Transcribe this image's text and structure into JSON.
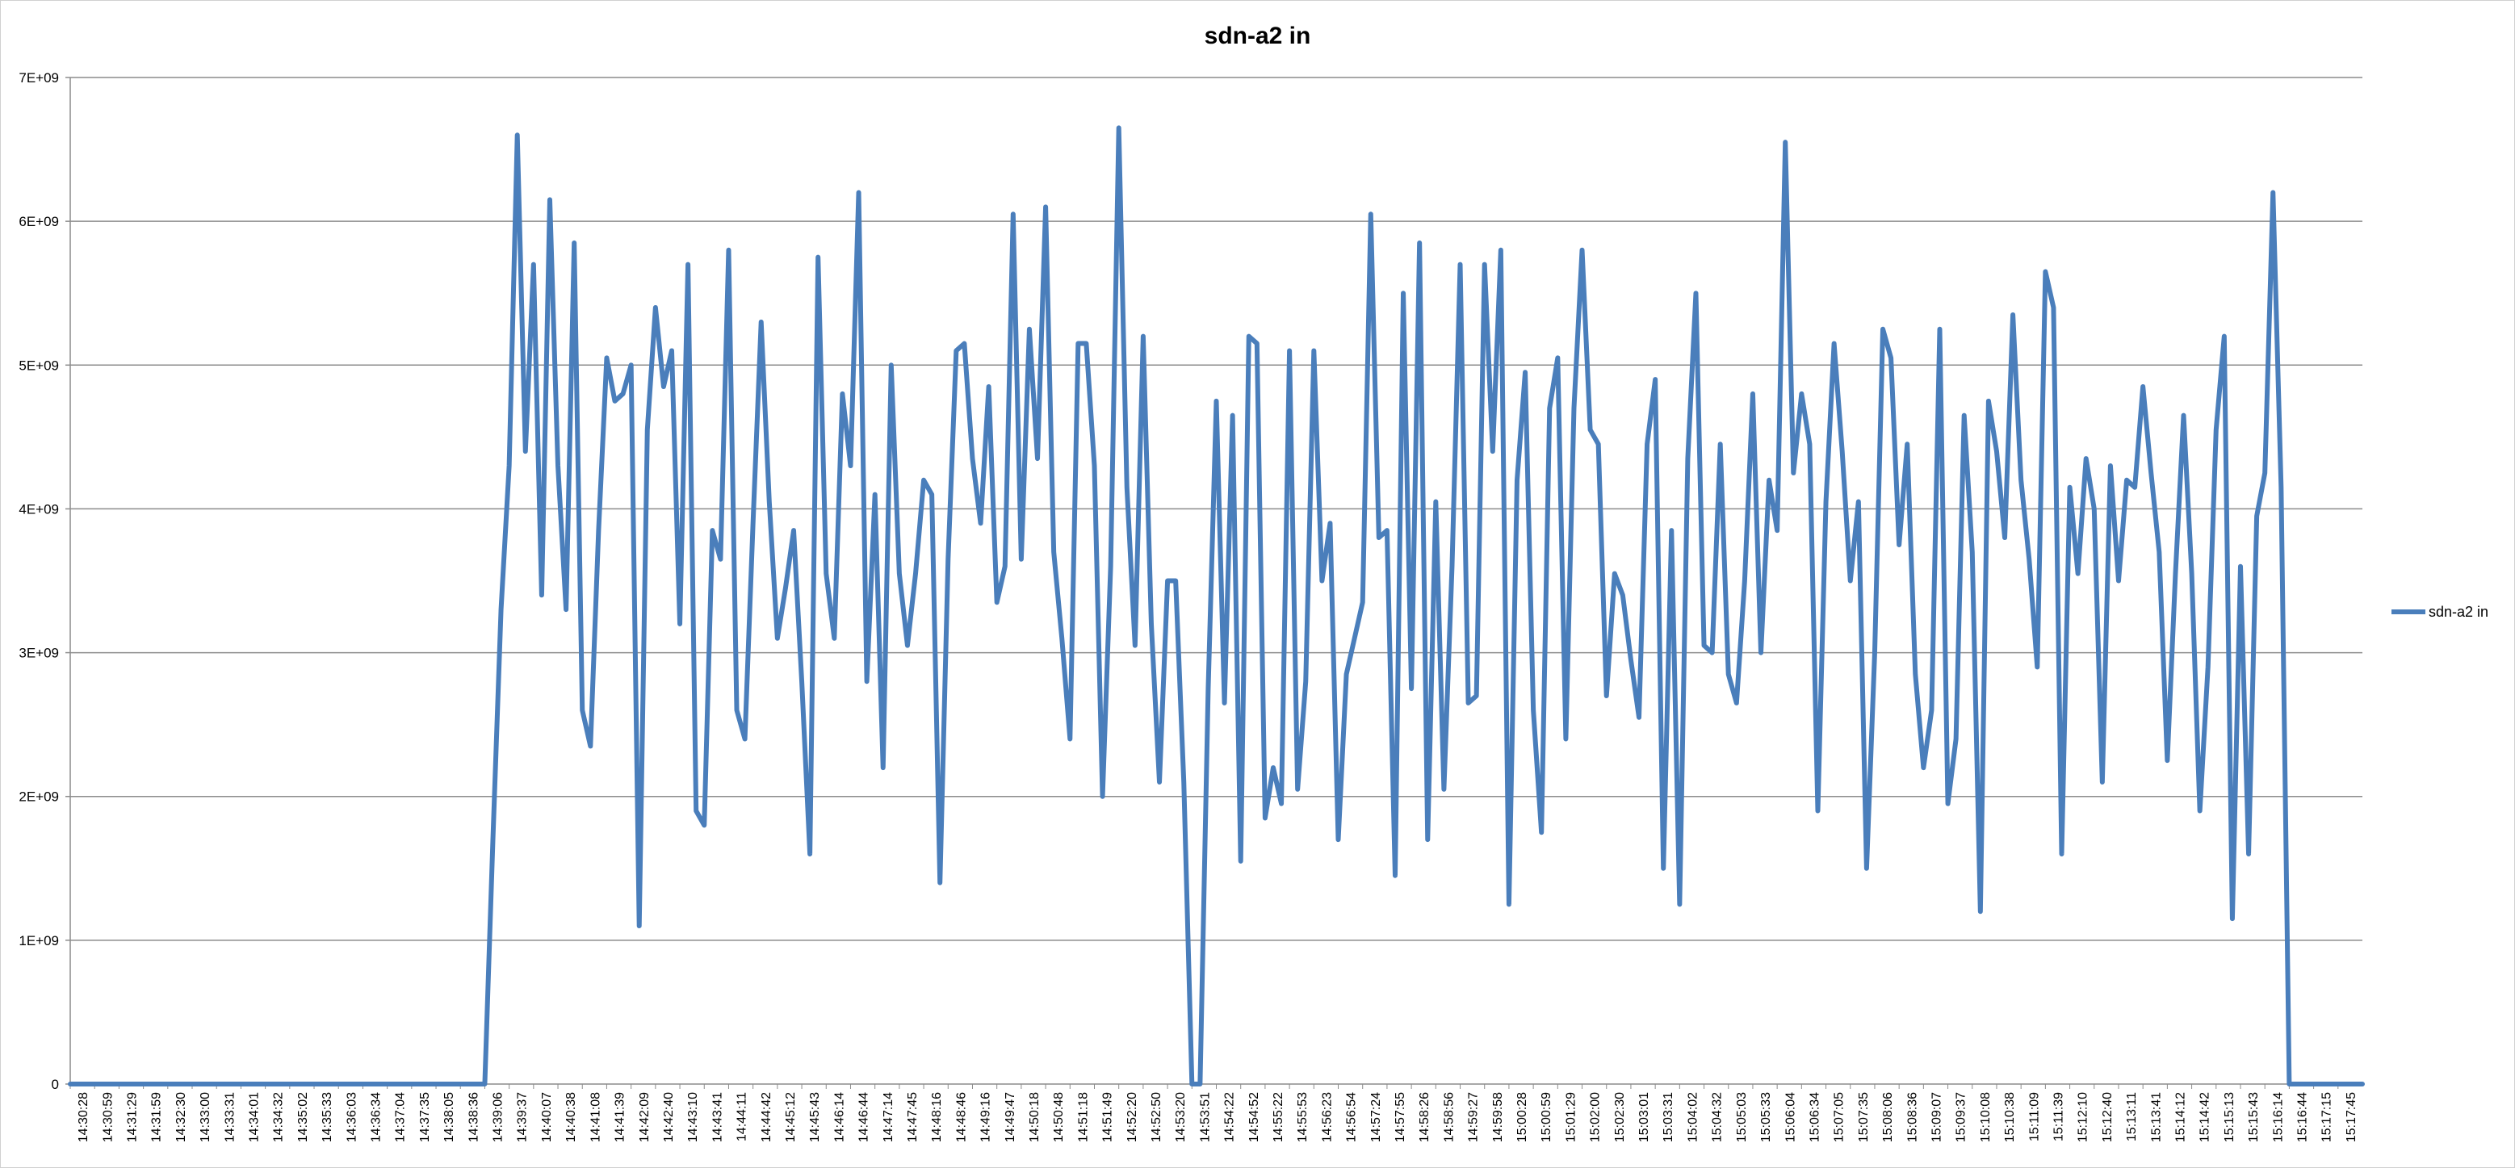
{
  "chart_data": {
    "type": "line",
    "title": "sdn-a2 in",
    "xlabel": "",
    "ylabel": "",
    "ylim": [
      0,
      7000000000
    ],
    "yticks": [
      {
        "value": 0,
        "label": "0"
      },
      {
        "value": 1000000000,
        "label": "1E+09"
      },
      {
        "value": 2000000000,
        "label": "2E+09"
      },
      {
        "value": 3000000000,
        "label": "3E+09"
      },
      {
        "value": 4000000000,
        "label": "4E+09"
      },
      {
        "value": 5000000000,
        "label": "5E+09"
      },
      {
        "value": 6000000000,
        "label": "6E+09"
      },
      {
        "value": 7000000000,
        "label": "7E+09"
      }
    ],
    "grid": "horizontal",
    "legend": "right",
    "color": "#4a7ebb",
    "x_labels": [
      "14:30:28",
      "14:30:59",
      "14:31:29",
      "14:31:59",
      "14:32:30",
      "14:33:00",
      "14:33:31",
      "14:34:01",
      "14:34:32",
      "14:35:02",
      "14:35:33",
      "14:36:03",
      "14:36:34",
      "14:37:04",
      "14:37:35",
      "14:38:05",
      "14:38:36",
      "14:39:06",
      "14:39:37",
      "14:40:07",
      "14:40:38",
      "14:41:08",
      "14:41:39",
      "14:42:09",
      "14:42:40",
      "14:43:10",
      "14:43:41",
      "14:44:11",
      "14:44:42",
      "14:45:12",
      "14:45:43",
      "14:46:14",
      "14:46:44",
      "14:47:14",
      "14:47:45",
      "14:48:16",
      "14:48:46",
      "14:49:16",
      "14:49:47",
      "14:50:18",
      "14:50:48",
      "14:51:18",
      "14:51:49",
      "14:52:20",
      "14:52:50",
      "14:53:20",
      "14:53:51",
      "14:54:22",
      "14:54:52",
      "14:55:22",
      "14:55:53",
      "14:56:23",
      "14:56:54",
      "14:57:24",
      "14:57:55",
      "14:58:26",
      "14:58:56",
      "14:59:27",
      "14:59:58",
      "15:00:28",
      "15:00:59",
      "15:01:29",
      "15:02:00",
      "15:02:30",
      "15:03:01",
      "15:03:31",
      "15:04:02",
      "15:04:32",
      "15:05:03",
      "15:05:33",
      "15:06:04",
      "15:06:34",
      "15:07:05",
      "15:07:35",
      "15:08:06",
      "15:08:36",
      "15:09:07",
      "15:09:37",
      "15:10:08",
      "15:10:38",
      "15:11:09",
      "15:11:39",
      "15:12:10",
      "15:12:40",
      "15:13:11",
      "15:13:41",
      "15:14:12",
      "15:14:42",
      "15:15:13",
      "15:15:43",
      "15:16:14",
      "15:16:44",
      "15:17:15",
      "15:17:45"
    ],
    "series": [
      {
        "name": "sdn-a2 in",
        "values": [
          0,
          0,
          0,
          0,
          0,
          0,
          0,
          0,
          0,
          0,
          0,
          0,
          0,
          0,
          0,
          0,
          0,
          0,
          0,
          0,
          0,
          0,
          0,
          0,
          0,
          0,
          0,
          0,
          0,
          0,
          0,
          0,
          0,
          0,
          0,
          0,
          0,
          0,
          0,
          0,
          0,
          0,
          0,
          0,
          0,
          0,
          0,
          0,
          0,
          0,
          0,
          0,
          1700000000,
          3300000000,
          4300000000,
          6600000000,
          4400000000,
          5700000000,
          3400000000,
          6150000000,
          4300000000,
          3300000000,
          5850000000,
          2600000000,
          2350000000,
          3850000000,
          5050000000,
          4750000000,
          4800000000,
          5000000000,
          1100000000,
          4550000000,
          5400000000,
          4850000000,
          5100000000,
          3200000000,
          5700000000,
          1900000000,
          1800000000,
          3850000000,
          3650000000,
          5800000000,
          2600000000,
          2400000000,
          3900000000,
          5300000000,
          4050000000,
          3100000000,
          3450000000,
          3850000000,
          2800000000,
          1600000000,
          5750000000,
          3550000000,
          3100000000,
          4800000000,
          4300000000,
          6200000000,
          2800000000,
          4100000000,
          2200000000,
          5000000000,
          3550000000,
          3050000000,
          3550000000,
          4200000000,
          4100000000,
          1400000000,
          3650000000,
          5100000000,
          5150000000,
          4350000000,
          3900000000,
          4850000000,
          3350000000,
          3600000000,
          6050000000,
          3650000000,
          5250000000,
          4350000000,
          6100000000,
          3700000000,
          3100000000,
          2400000000,
          5150000000,
          5150000000,
          4300000000,
          2000000000,
          3600000000,
          6650000000,
          4150000000,
          3050000000,
          5200000000,
          3200000000,
          2100000000,
          3500000000,
          3500000000,
          2100000000,
          0,
          0,
          2750000000,
          4750000000,
          2650000000,
          4650000000,
          1550000000,
          5200000000,
          5150000000,
          1850000000,
          2200000000,
          1950000000,
          5100000000,
          2050000000,
          2800000000,
          5100000000,
          3500000000,
          3900000000,
          1700000000,
          2850000000,
          3100000000,
          3350000000,
          6050000000,
          3800000000,
          3850000000,
          1450000000,
          5500000000,
          2750000000,
          5850000000,
          1700000000,
          4050000000,
          2050000000,
          3600000000,
          5700000000,
          2650000000,
          2700000000,
          5700000000,
          4400000000,
          5800000000,
          1250000000,
          4200000000,
          4950000000,
          2600000000,
          1750000000,
          4700000000,
          5050000000,
          2400000000,
          4700000000,
          5800000000,
          4550000000,
          4450000000,
          2700000000,
          3550000000,
          3400000000,
          2950000000,
          2550000000,
          4450000000,
          4900000000,
          1500000000,
          3850000000,
          1250000000,
          4350000000,
          5500000000,
          3050000000,
          3000000000,
          4450000000,
          2850000000,
          2650000000,
          3500000000,
          4800000000,
          3000000000,
          4200000000,
          3850000000,
          6550000000,
          4250000000,
          4800000000,
          4450000000,
          1900000000,
          4050000000,
          5150000000,
          4400000000,
          3500000000,
          4050000000,
          1500000000,
          3000000000,
          5250000000,
          5050000000,
          3750000000,
          4450000000,
          2850000000,
          2200000000,
          2600000000,
          5250000000,
          1950000000,
          2400000000,
          4650000000,
          3700000000,
          1200000000,
          4750000000,
          4400000000,
          3800000000,
          5350000000,
          4200000000,
          3650000000,
          2900000000,
          5650000000,
          5400000000,
          1600000000,
          4150000000,
          3550000000,
          4350000000,
          4000000000,
          2100000000,
          4300000000,
          3500000000,
          4200000000,
          4150000000,
          4850000000,
          4250000000,
          3700000000,
          2250000000,
          3550000000,
          4650000000,
          3550000000,
          1900000000,
          2900000000,
          4550000000,
          5200000000,
          1150000000,
          3600000000,
          1600000000,
          3950000000,
          4250000000,
          6200000000,
          4150000000,
          0,
          0,
          0,
          0,
          0,
          0,
          0,
          0,
          0,
          0
        ]
      }
    ]
  }
}
